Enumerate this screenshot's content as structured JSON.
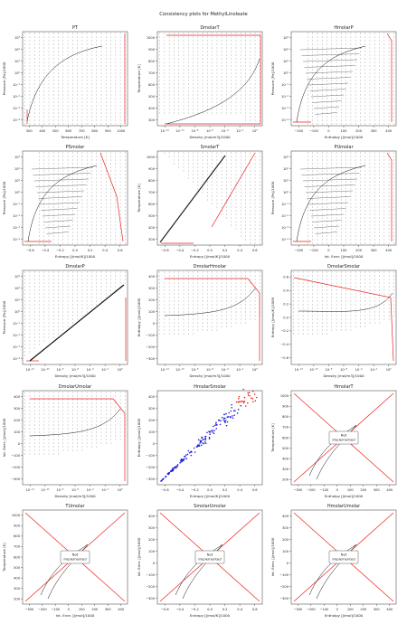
{
  "figure": {
    "suptitle": "Consistency plots for MethylLinoleate"
  },
  "chart_data": [
    {
      "title": "PT",
      "type": "scatter",
      "xlabel": "Temperature [K]",
      "ylabel": "Pressure [Pa]/1000",
      "xlim": [
        250,
        1020
      ],
      "ylim": [
        -5,
        4.6
      ],
      "ylog": true,
      "xticks": [
        "300",
        "400",
        "500",
        "600",
        "700",
        "800",
        "900",
        "1000"
      ],
      "yticks": [
        "10⁻⁴",
        "10⁻³",
        "10⁻²",
        "10⁻¹",
        "10⁰",
        "10¹",
        "10²",
        "10³"
      ],
      "curve": "sat-pt",
      "red_boundary": "pt"
    },
    {
      "title": "DmolarT",
      "type": "scatter",
      "xlabel": "Density [mol/m3]/1000",
      "ylabel": "Temperature [K]",
      "xlim": [
        -13.5,
        1.5
      ],
      "ylim": [
        240,
        1020
      ],
      "xlog": true,
      "xticks": [
        "10⁻¹²",
        "10⁻¹⁰",
        "10⁻⁸",
        "10⁻⁶",
        "10⁻⁴",
        "10⁻²",
        "10⁰"
      ],
      "yticks": [
        "300",
        "400",
        "500",
        "600",
        "700",
        "800",
        "900",
        "1000"
      ],
      "curve": "dt",
      "red_boundary": "dt"
    },
    {
      "title": "HmolarP",
      "type": "scatter",
      "xlabel": "Enthalpy [J/mol]/1000",
      "ylabel": "Pressure [Pa]/1000",
      "xlim": [
        -205,
        420
      ],
      "ylim": [
        -5,
        4.6
      ],
      "ylog": true,
      "xticks": [
        "−200",
        "−100",
        "0",
        "100",
        "200",
        "300",
        "400"
      ],
      "yticks": [
        "10⁻⁴",
        "10⁻³",
        "10⁻²",
        "10⁻¹",
        "10⁰",
        "10¹",
        "10²",
        "10³"
      ],
      "curve": "dome-p",
      "red_boundary": "hp"
    },
    {
      "title": "PSmolar",
      "type": "scatter",
      "xlabel": "Entropy [J/mol/K]/1000",
      "ylabel": "Pressure [Pa]/1000",
      "xlim": [
        -0.66,
        0.72
      ],
      "ylim": [
        -5,
        4.6
      ],
      "ylog": true,
      "xticks": [
        "−0.6",
        "−0.4",
        "−0.2",
        "0.0",
        "0.2",
        "0.4",
        "0.6"
      ],
      "yticks": [
        "10⁻⁴",
        "10⁻³",
        "10⁻²",
        "10⁻¹",
        "10⁰",
        "10¹",
        "10²",
        "10³"
      ],
      "curve": "dome-ps",
      "red_boundary": "sp"
    },
    {
      "title": "SmolarT",
      "type": "scatter",
      "xlabel": "Entropy [J/mol/K]/1000",
      "ylabel": "Temperature [K]",
      "xlim": [
        -0.66,
        0.72
      ],
      "ylim": [
        240,
        1020
      ],
      "xticks": [
        "−0.6",
        "−0.4",
        "−0.2",
        "0.0",
        "0.2",
        "0.4",
        "0.6"
      ],
      "yticks": [
        "300",
        "400",
        "500",
        "600",
        "700",
        "800",
        "900",
        "1000"
      ],
      "curve": "st",
      "red_boundary": "st"
    },
    {
      "title": "PUmolar",
      "type": "scatter",
      "xlabel": "Int. Ener. [J/mol]/1000",
      "ylabel": "Pressure [Pa]/1000",
      "xlim": [
        -205,
        420
      ],
      "ylim": [
        -5,
        4.6
      ],
      "ylog": true,
      "xticks": [
        "−200",
        "−100",
        "0",
        "100",
        "200",
        "300",
        "400"
      ],
      "yticks": [
        "10⁻⁴",
        "10⁻³",
        "10⁻²",
        "10⁻¹",
        "10⁰",
        "10¹",
        "10²",
        "10³"
      ],
      "curve": "dome-p",
      "red_boundary": "hp"
    },
    {
      "title": "DmolarP",
      "type": "scatter",
      "xlabel": "Density [mol/m3]/1000",
      "ylabel": "Pressure [Pa]/1000",
      "xlim": [
        -13.5,
        1.5
      ],
      "ylim": [
        -5,
        4.6
      ],
      "xlog": true,
      "ylog": true,
      "xticks": [
        "10⁻¹²",
        "10⁻¹⁰",
        "10⁻⁸",
        "10⁻⁶",
        "10⁻⁴",
        "10⁻²",
        "10⁰"
      ],
      "yticks": [
        "10⁻⁴",
        "10⁻³",
        "10⁻²",
        "10⁻¹",
        "10⁰",
        "10¹",
        "10²",
        "10³"
      ],
      "curve": "diag",
      "red_boundary": "dp"
    },
    {
      "title": "DmolarHmolar",
      "type": "scatter",
      "xlabel": "Density [mol/m3]/1000",
      "ylabel": "Enthalpy [J/mol]/1000",
      "xlim": [
        -13.5,
        1.5
      ],
      "ylim": [
        -300,
        400
      ],
      "xlog": true,
      "xticks": [
        "10⁻¹²",
        "10⁻¹⁰",
        "10⁻⁸",
        "10⁻⁶",
        "10⁻⁴",
        "10⁻²",
        "10⁰"
      ],
      "yticks": [
        "−300",
        "−200",
        "−100",
        "0",
        "100",
        "200",
        "300",
        "400"
      ],
      "curve": "dh",
      "red_boundary": "dh"
    },
    {
      "title": "DmolarSmolar",
      "type": "scatter",
      "xlabel": "Density [mol/m3]/1000",
      "ylabel": "Entropy [J/mol/K]/1000",
      "xlim": [
        -13.5,
        1.5
      ],
      "ylim": [
        -0.65,
        0.7
      ],
      "xlog": true,
      "xticks": [
        "10⁻¹²",
        "10⁻¹⁰",
        "10⁻⁸",
        "10⁻⁶",
        "10⁻⁴",
        "10⁻²",
        "10⁰"
      ],
      "yticks": [
        "−0.6",
        "−0.4",
        "−0.2",
        "0.0",
        "0.2",
        "0.4",
        "0.6"
      ],
      "curve": "ds",
      "red_boundary": "ds"
    },
    {
      "title": "DmolarUmolar",
      "type": "scatter",
      "xlabel": "Density [mol/m3]/1000",
      "ylabel": "Int. Ener. [J/mol]/1000",
      "xlim": [
        -13.5,
        1.5
      ],
      "ylim": [
        -300,
        400
      ],
      "xlog": true,
      "xticks": [
        "10⁻¹²",
        "10⁻¹⁰",
        "10⁻⁸",
        "10⁻⁶",
        "10⁻⁴",
        "10⁻²",
        "10⁰"
      ],
      "yticks": [
        "−300",
        "−200",
        "−100",
        "0",
        "100",
        "200",
        "300",
        "400"
      ],
      "curve": "dh",
      "red_boundary": "dh"
    },
    {
      "title": "HmolarSmolar",
      "type": "scatter",
      "xlabel": "Entropy [J/mol/K]/1000",
      "ylabel": "Enthalpy [J/mol]/1000",
      "xlim": [
        -0.66,
        0.72
      ],
      "ylim": [
        -300,
        400
      ],
      "xticks": [
        "−0.6",
        "−0.4",
        "−0.2",
        "0.0",
        "0.2",
        "0.4",
        "0.6"
      ],
      "yticks": [
        "−300",
        "−200",
        "−100",
        "0",
        "100",
        "200",
        "300",
        "400"
      ],
      "curve": "hs",
      "red_boundary": "none"
    },
    {
      "title": "HmolarT",
      "type": "scatter",
      "xlabel": "Enthalpy [J/mol]/1000",
      "ylabel": "Temperature [K]",
      "xlim": [
        -330,
        430
      ],
      "ylim": [
        180,
        1060
      ],
      "xticks": [
        "−300",
        "−200",
        "−100",
        "0",
        "100",
        "200",
        "300",
        "400"
      ],
      "yticks": [
        "200",
        "300",
        "400",
        "500",
        "600",
        "700",
        "800",
        "900",
        "1000"
      ],
      "curve": "not-impl",
      "red_boundary": "x",
      "annotation": "Not\nImplemented"
    },
    {
      "title": "TUmolar",
      "type": "scatter",
      "xlabel": "Int. Ener. [J/mol]/1000",
      "ylabel": "Temperature [K]",
      "xlim": [
        -330,
        430
      ],
      "ylim": [
        180,
        1060
      ],
      "xticks": [
        "−300",
        "−200",
        "−100",
        "0",
        "100",
        "200",
        "300",
        "400"
      ],
      "yticks": [
        "200",
        "300",
        "400",
        "500",
        "600",
        "700",
        "800",
        "900",
        "1000"
      ],
      "curve": "not-impl",
      "red_boundary": "x",
      "annotation": "Not\nImplemented"
    },
    {
      "title": "SmolarUmolar",
      "type": "scatter",
      "xlabel": "Entropy [J/mol/K]/1000",
      "ylabel": "Int. Ener. [J/mol]/1000",
      "xlim": [
        -0.66,
        0.72
      ],
      "ylim": [
        -330,
        430
      ],
      "xticks": [
        "−0.6",
        "−0.4",
        "−0.2",
        "0.0",
        "0.2",
        "0.4",
        "0.6"
      ],
      "yticks": [
        "−300",
        "−200",
        "−100",
        "0",
        "100",
        "200",
        "300",
        "400"
      ],
      "curve": "not-impl-s",
      "red_boundary": "x-s",
      "annotation": "Not\nImplemented"
    },
    {
      "title": "HmolarUmolar",
      "type": "scatter",
      "xlabel": "Enthalpy [J/mol]/1000",
      "ylabel": "Int. Ener. [J/mol]/1000",
      "xlim": [
        -330,
        430
      ],
      "ylim": [
        -330,
        430
      ],
      "xticks": [
        "−300",
        "−200",
        "−100",
        "0",
        "100",
        "200",
        "300",
        "400"
      ],
      "yticks": [
        "−300",
        "−200",
        "−100",
        "0",
        "100",
        "200",
        "300",
        "400"
      ],
      "curve": "not-impl",
      "red_boundary": "x",
      "annotation": "Not\nImplemented"
    }
  ]
}
